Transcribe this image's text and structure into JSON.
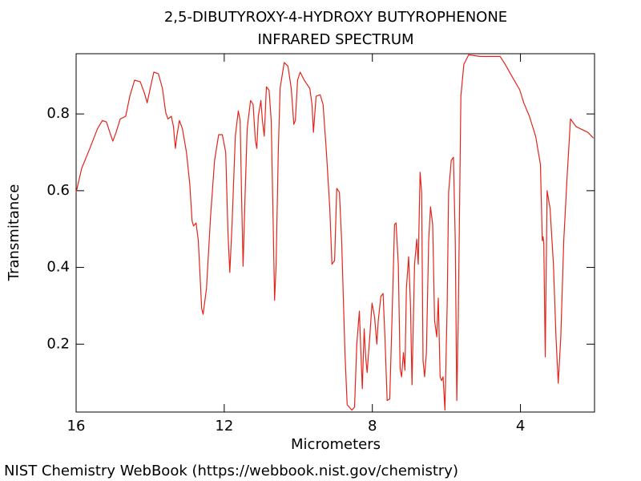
{
  "chart_data": {
    "type": "line",
    "title": "2,5-DIBUTYROXY-4-HYDROXY BUTYROPHENONE",
    "subtitle": "INFRARED SPECTRUM",
    "x_label": "Micrometers",
    "y_label": "Transmitance",
    "xlim": [
      16,
      2
    ],
    "ylim": [
      0.023,
      0.957
    ],
    "xticks": [
      16,
      12,
      8,
      4
    ],
    "yticks": [
      0.2,
      0.4,
      0.6,
      0.8
    ],
    "series": [
      {
        "color": "#e3241b",
        "x": [
          16,
          15.85,
          15.63,
          15.42,
          15.29,
          15.18,
          15.07,
          15.01,
          14.92,
          14.81,
          14.66,
          14.55,
          14.42,
          14.27,
          14.16,
          14.08,
          13.99,
          13.9,
          13.78,
          13.67,
          13.58,
          13.52,
          13.43,
          13.37,
          13.32,
          13.28,
          13.21,
          13.13,
          13.02,
          12.93,
          12.87,
          12.83,
          12.76,
          12.7,
          12.61,
          12.57,
          12.48,
          12.37,
          12.26,
          12.15,
          12.05,
          11.96,
          11.9,
          11.85,
          11.79,
          11.7,
          11.62,
          11.57,
          11.53,
          11.49,
          11.44,
          11.38,
          11.29,
          11.22,
          11.16,
          11.12,
          11.08,
          11.01,
          10.97,
          10.92,
          10.86,
          10.79,
          10.73,
          10.69,
          10.64,
          10.6,
          10.54,
          10.49,
          10.38,
          10.28,
          10.19,
          10.12,
          10.08,
          10.02,
          9.95,
          9.84,
          9.69,
          9.63,
          9.59,
          9.52,
          9.41,
          9.33,
          9.24,
          9.15,
          9.09,
          9.02,
          8.96,
          8.89,
          8.83,
          8.74,
          8.68,
          8.55,
          8.48,
          8.42,
          8.35,
          8.31,
          8.27,
          8.22,
          8.18,
          8.14,
          8.07,
          8.01,
          7.94,
          7.88,
          7.84,
          7.77,
          7.71,
          7.66,
          7.6,
          7.53,
          7.47,
          7.4,
          7.36,
          7.3,
          7.25,
          7.21,
          7.16,
          7.12,
          7.08,
          7.02,
          6.97,
          6.93,
          6.86,
          6.8,
          6.76,
          6.71,
          6.67,
          6.63,
          6.59,
          6.54,
          6.48,
          6.43,
          6.37,
          6.32,
          6.26,
          6.22,
          6.17,
          6.13,
          6.09,
          6.04,
          5.98,
          5.94,
          5.87,
          5.81,
          5.76,
          5.72,
          5.68,
          5.61,
          5.53,
          5.4,
          5.09,
          4.55,
          4.41,
          4.23,
          4.02,
          3.91,
          3.76,
          3.59,
          3.46,
          3.41,
          3.39,
          3.37,
          3.33,
          3.28,
          3.2,
          3.11,
          3.04,
          2.98,
          2.91,
          2.83,
          2.74,
          2.65,
          2.5,
          2.18,
          2.03
        ],
        "values": [
          0.595,
          0.658,
          0.71,
          0.762,
          0.783,
          0.779,
          0.746,
          0.729,
          0.752,
          0.787,
          0.794,
          0.846,
          0.888,
          0.884,
          0.856,
          0.829,
          0.871,
          0.909,
          0.905,
          0.867,
          0.804,
          0.787,
          0.794,
          0.767,
          0.71,
          0.742,
          0.783,
          0.762,
          0.7,
          0.616,
          0.522,
          0.508,
          0.516,
          0.47,
          0.293,
          0.278,
          0.345,
          0.533,
          0.679,
          0.746,
          0.746,
          0.7,
          0.491,
          0.387,
          0.512,
          0.742,
          0.808,
          0.783,
          0.575,
          0.403,
          0.575,
          0.762,
          0.835,
          0.825,
          0.731,
          0.71,
          0.794,
          0.835,
          0.783,
          0.742,
          0.871,
          0.862,
          0.783,
          0.575,
          0.314,
          0.408,
          0.7,
          0.867,
          0.934,
          0.925,
          0.867,
          0.773,
          0.783,
          0.888,
          0.909,
          0.888,
          0.867,
          0.825,
          0.752,
          0.846,
          0.85,
          0.825,
          0.7,
          0.554,
          0.408,
          0.418,
          0.606,
          0.596,
          0.47,
          0.178,
          0.042,
          0.028,
          0.036,
          0.2,
          0.286,
          0.178,
          0.084,
          0.24,
          0.166,
          0.126,
          0.219,
          0.307,
          0.271,
          0.2,
          0.261,
          0.324,
          0.332,
          0.219,
          0.053,
          0.057,
          0.261,
          0.512,
          0.516,
          0.408,
          0.136,
          0.115,
          0.178,
          0.132,
          0.345,
          0.428,
          0.303,
          0.094,
          0.408,
          0.474,
          0.408,
          0.648,
          0.596,
          0.157,
          0.115,
          0.178,
          0.47,
          0.558,
          0.512,
          0.261,
          0.219,
          0.32,
          0.115,
          0.105,
          0.115,
          0.028,
          0.303,
          0.596,
          0.679,
          0.687,
          0.47,
          0.053,
          0.261,
          0.846,
          0.929,
          0.954,
          0.95,
          0.95,
          0.929,
          0.898,
          0.863,
          0.829,
          0.794,
          0.742,
          0.668,
          0.47,
          0.48,
          0.46,
          0.167,
          0.6,
          0.554,
          0.408,
          0.219,
          0.098,
          0.219,
          0.47,
          0.637,
          0.787,
          0.767,
          0.752,
          0.737
        ]
      }
    ]
  },
  "footer": "NIST Chemistry WebBook (https://webbook.nist.gov/chemistry)"
}
